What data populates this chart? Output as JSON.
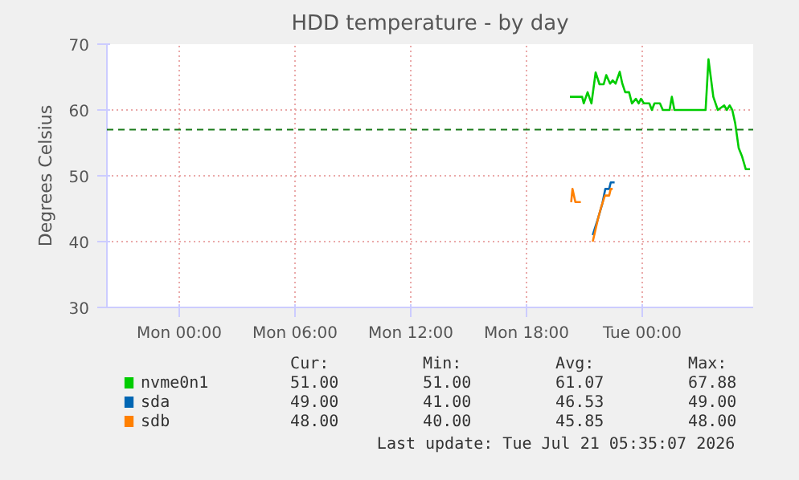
{
  "chart_data": {
    "type": "line",
    "title": "HDD temperature - by day",
    "ylabel": "Degrees Celsius",
    "xlim": [
      "2026-07-19T20:15",
      "2026-07-21T05:45"
    ],
    "ylim": [
      30,
      70
    ],
    "xticks": [
      {
        "value": "2026-07-20T00:00",
        "label": "Mon 00:00"
      },
      {
        "value": "2026-07-20T06:00",
        "label": "Mon 06:00"
      },
      {
        "value": "2026-07-20T12:00",
        "label": "Mon 12:00"
      },
      {
        "value": "2026-07-20T18:00",
        "label": "Mon 18:00"
      },
      {
        "value": "2026-07-21T00:00",
        "label": "Tue 00:00"
      }
    ],
    "yticks": [
      30,
      40,
      50,
      60,
      70
    ],
    "grid": true,
    "legend": "bottom",
    "line_style": "solid",
    "series": [
      {
        "name": "nvme0n1",
        "color": "#00cc00",
        "x": [
          "2026-07-20T20:15",
          "2026-07-20T20:53",
          "2026-07-20T20:58",
          "2026-07-20T21:10",
          "2026-07-20T21:22",
          "2026-07-20T21:35",
          "2026-07-20T21:47",
          "2026-07-20T22:00",
          "2026-07-20T22:08",
          "2026-07-20T22:20",
          "2026-07-20T22:28",
          "2026-07-20T22:37",
          "2026-07-20T22:50",
          "2026-07-20T22:58",
          "2026-07-20T23:07",
          "2026-07-20T23:19",
          "2026-07-20T23:28",
          "2026-07-20T23:40",
          "2026-07-20T23:49",
          "2026-07-20T23:56",
          "2026-07-21T00:05",
          "2026-07-21T00:22",
          "2026-07-21T00:30",
          "2026-07-21T00:38",
          "2026-07-21T00:55",
          "2026-07-21T01:04",
          "2026-07-21T01:25",
          "2026-07-21T01:32",
          "2026-07-21T01:40",
          "2026-07-21T03:17",
          "2026-07-21T03:26",
          "2026-07-21T03:41",
          "2026-07-21T03:55",
          "2026-07-21T04:15",
          "2026-07-21T04:23",
          "2026-07-21T04:32",
          "2026-07-21T04:40",
          "2026-07-21T04:49",
          "2026-07-21T05:00",
          "2026-07-21T05:10",
          "2026-07-21T05:22",
          "2026-07-21T05:35"
        ],
        "values": [
          62,
          62,
          61,
          62.7,
          61,
          65.7,
          63.9,
          63.9,
          65.3,
          64,
          64.5,
          64,
          65.8,
          64,
          62.7,
          62.7,
          61,
          61.7,
          61,
          61.7,
          61,
          61,
          60,
          61,
          61,
          60,
          60,
          62,
          60,
          60,
          67.7,
          62,
          60,
          60.7,
          60,
          60.7,
          60,
          58,
          54.2,
          53,
          51,
          51
        ]
      },
      {
        "name": "sda",
        "color": "#0066b3",
        "x": [
          "2026-07-20T21:26",
          "2026-07-20T21:43",
          "2026-07-20T21:56",
          "2026-07-20T22:05",
          "2026-07-20T22:17",
          "2026-07-20T22:22",
          "2026-07-20T22:34"
        ],
        "values": [
          41,
          43.6,
          45.8,
          48,
          48,
          49,
          49
        ]
      },
      {
        "name": "sdb",
        "color": "#ff8000",
        "x": [
          "2026-07-20T20:19",
          "2026-07-20T20:23",
          "2026-07-20T20:32",
          "2026-07-20T20:49",
          "2026-07-20T20:52",
          "2026-07-20T21:26",
          "2026-07-20T21:43",
          "2026-07-20T21:52",
          "2026-07-20T22:04",
          "2026-07-20T22:17",
          "2026-07-20T22:22",
          "2026-07-20T22:28"
        ],
        "values": [
          46,
          48,
          46,
          46,
          null,
          40,
          43.6,
          45.2,
          47,
          47,
          48,
          48
        ]
      }
    ],
    "ref_lines": [
      {
        "axis": "y",
        "value": 57,
        "color": "#1a7a1a",
        "line_style": "dashed"
      }
    ],
    "annotations": [
      "Cur:",
      "Min:",
      "Avg:",
      "Max:",
      "51.00",
      "51.00",
      "61.07",
      "67.88",
      "49.00",
      "41.00",
      "46.53",
      "49.00",
      "48.00",
      "40.00",
      "45.85",
      "48.00",
      "Last update: Tue Jul 21 05:35:07 2026"
    ]
  }
}
